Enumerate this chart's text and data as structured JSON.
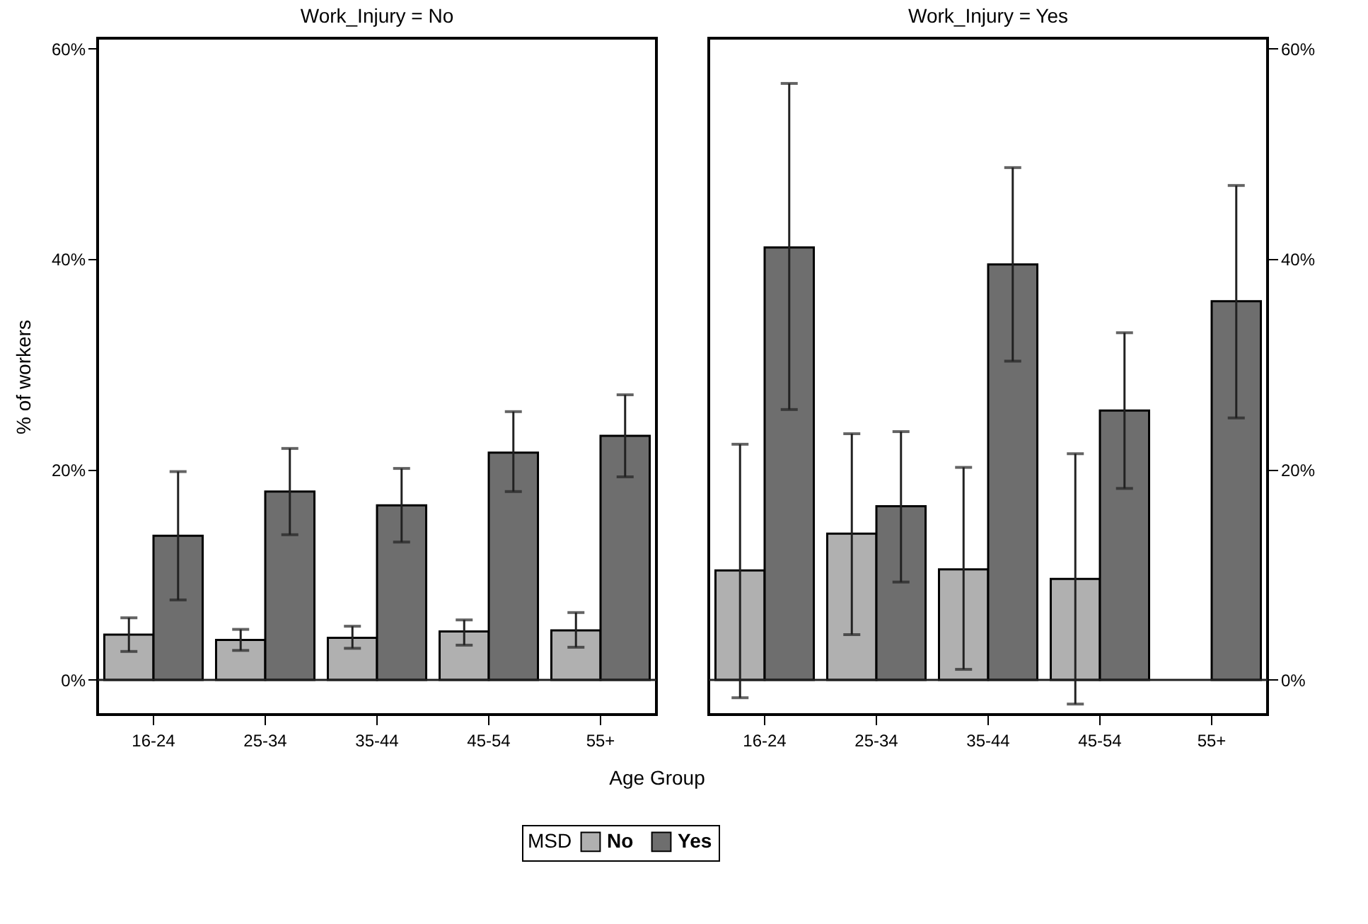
{
  "chart_data": [
    {
      "type": "bar",
      "title": "Work_Injury = No",
      "xlabel": "Age Group",
      "ylabel": "% of workers",
      "legend_title": "MSD",
      "legend": "bottom",
      "categories": [
        "16-24",
        "25-34",
        "35-44",
        "45-54",
        "55+"
      ],
      "series": [
        {
          "name": "No",
          "color": "#b0b0b0",
          "values": [
            4.3,
            3.8,
            4.0,
            4.6,
            4.7
          ],
          "errors": [
            [
              2.7,
              5.9
            ],
            [
              2.8,
              4.8
            ],
            [
              3.0,
              5.1
            ],
            [
              3.3,
              5.7
            ],
            [
              3.1,
              6.4
            ]
          ]
        },
        {
          "name": "Yes",
          "color": "#6e6e6e",
          "values": [
            13.7,
            17.9,
            16.6,
            21.6,
            23.2
          ],
          "errors": [
            [
              7.6,
              19.8
            ],
            [
              13.8,
              22.0
            ],
            [
              13.1,
              20.1
            ],
            [
              17.9,
              25.5
            ],
            [
              19.3,
              27.1
            ]
          ]
        }
      ],
      "ylim": [
        -3.3,
        61
      ],
      "yticks": [
        {
          "value": 0,
          "label": "0%"
        },
        {
          "value": 20,
          "label": "20%"
        },
        {
          "value": 40,
          "label": "40%"
        },
        {
          "value": 60,
          "label": "60%"
        }
      ],
      "ref_lines": [
        {
          "axis": "y",
          "value": 0,
          "label": null
        }
      ],
      "grid": false
    },
    {
      "type": "bar",
      "title": "Work_Injury = Yes",
      "categories": [
        "16-24",
        "25-34",
        "35-44",
        "45-54",
        "55+"
      ],
      "series": [
        {
          "name": "No",
          "color": "#b0b0b0",
          "values": [
            10.4,
            13.9,
            10.5,
            9.6,
            0
          ],
          "errors": [
            [
              -1.7,
              22.4
            ],
            [
              4.3,
              23.4
            ],
            [
              1.0,
              20.2
            ],
            [
              -2.3,
              21.5
            ],
            null
          ]
        },
        {
          "name": "Yes",
          "color": "#6e6e6e",
          "values": [
            41.1,
            16.5,
            39.5,
            25.6,
            36.0
          ],
          "errors": [
            [
              25.7,
              56.7
            ],
            [
              9.3,
              23.6
            ],
            [
              30.3,
              48.7
            ],
            [
              18.2,
              33.0
            ],
            [
              24.9,
              47.0
            ]
          ]
        }
      ],
      "ylim": [
        -3.3,
        61
      ],
      "yticks": [
        {
          "value": 0,
          "label": "0%"
        },
        {
          "value": 20,
          "label": "20%"
        },
        {
          "value": 40,
          "label": "40%"
        },
        {
          "value": 60,
          "label": "60%"
        }
      ],
      "ref_lines": [
        {
          "axis": "y",
          "value": 0,
          "label": null
        }
      ],
      "grid": false
    }
  ]
}
